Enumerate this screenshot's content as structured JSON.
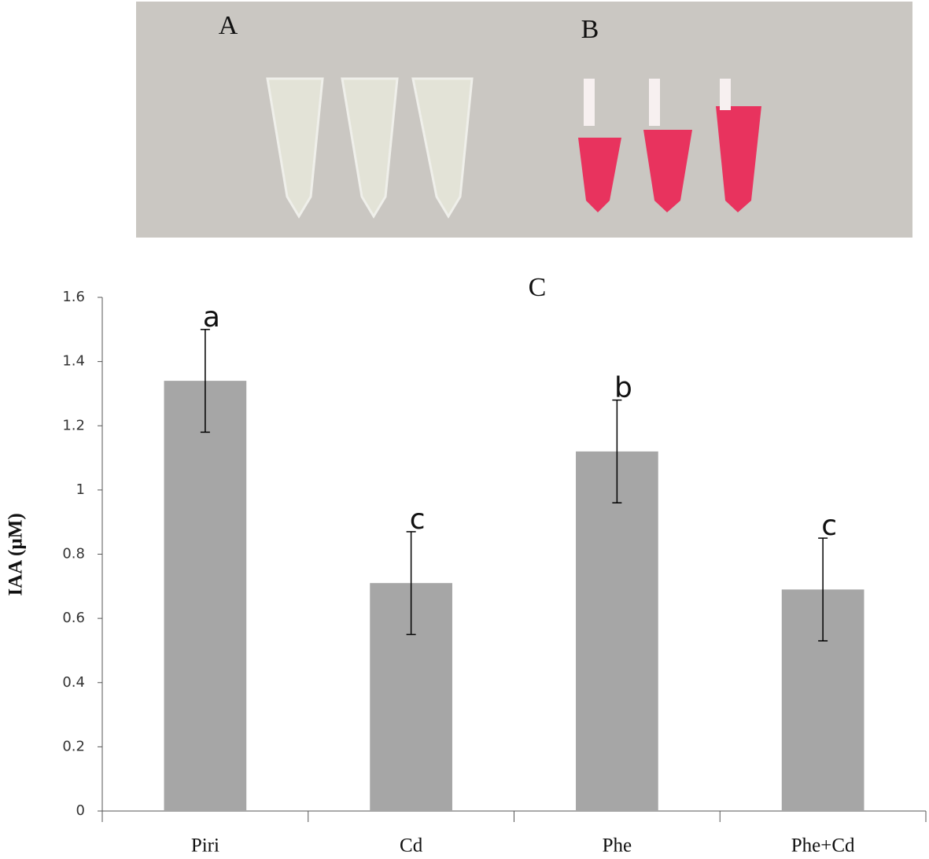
{
  "photo": {
    "labels": [
      "A",
      "B"
    ]
  },
  "chart_data": {
    "type": "bar",
    "title": "C",
    "y_label": "IAA (µM)",
    "categories": [
      "Piri",
      "Cd",
      "Phe",
      "Phe+Cd"
    ],
    "values": [
      1.34,
      0.71,
      1.12,
      0.69
    ],
    "errors": [
      0.16,
      0.16,
      0.16,
      0.16
    ],
    "annotations": [
      "a",
      "c",
      "b",
      "c"
    ],
    "color": "#a6a6a6",
    "ylim": [
      0,
      1.6
    ],
    "yticks": [
      0,
      0.2,
      0.4,
      0.6,
      0.8,
      1,
      1.2,
      1.4,
      1.6
    ]
  }
}
